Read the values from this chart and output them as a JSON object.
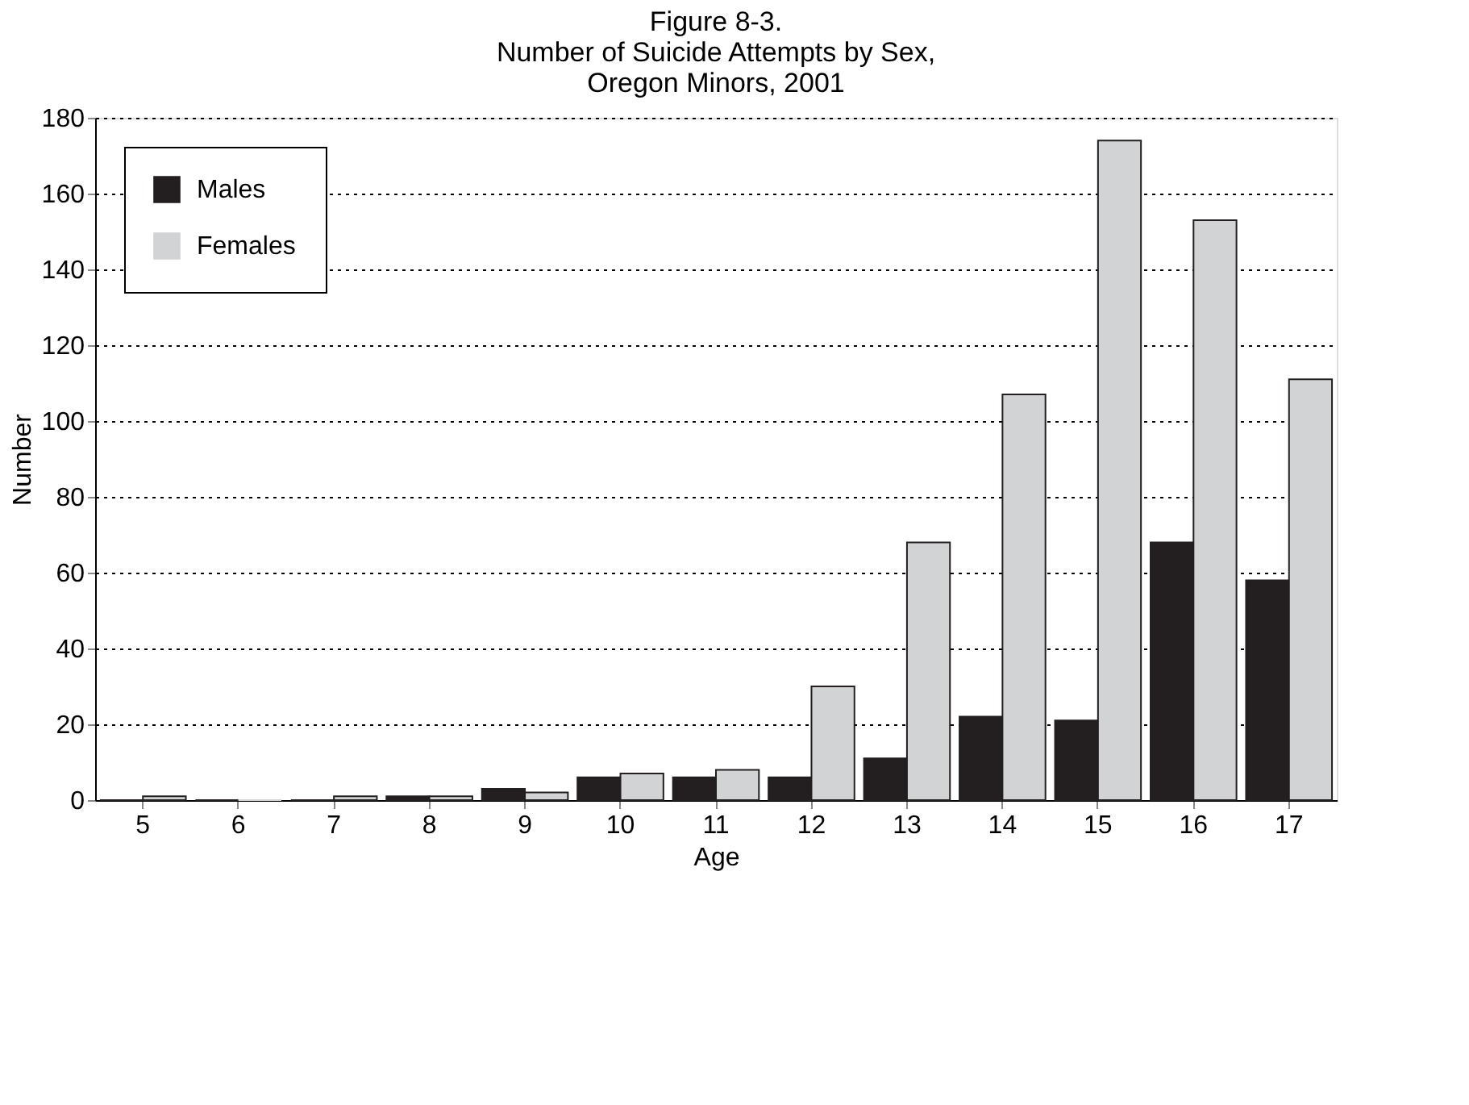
{
  "chart_data": {
    "type": "bar",
    "title": [
      "Figure 8-3.",
      "Number of Suicide Attempts by Sex,",
      "Oregon Minors, 2001"
    ],
    "xlabel": "Age",
    "ylabel": "Number",
    "categories": [
      "5",
      "6",
      "7",
      "8",
      "9",
      "10",
      "11",
      "12",
      "13",
      "14",
      "15",
      "16",
      "17"
    ],
    "series": [
      {
        "name": "Males",
        "color": "#231f20",
        "values": [
          0,
          0,
          0,
          1,
          3,
          6,
          6,
          6,
          11,
          22,
          21,
          68,
          58
        ]
      },
      {
        "name": "Females",
        "color": "#d1d3d4",
        "values": [
          1,
          0,
          1,
          1,
          2,
          7,
          8,
          30,
          68,
          107,
          174,
          153,
          111
        ]
      }
    ],
    "ylim": [
      0,
      180
    ],
    "yticks": [
      0,
      20,
      40,
      60,
      80,
      100,
      120,
      140,
      160,
      180
    ],
    "grid": "y",
    "legend": "top left"
  }
}
